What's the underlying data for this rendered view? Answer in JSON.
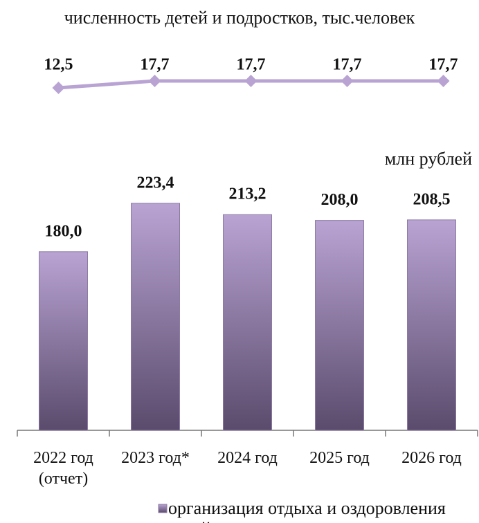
{
  "chart_data": [
    {
      "type": "line",
      "title": "численность детей и подростков, тыс.человек",
      "categories": [
        null,
        null,
        null,
        null,
        null
      ],
      "values": [
        12.5,
        17.7,
        17.7,
        17.7,
        17.7
      ],
      "value_labels": [
        "12,5",
        "17,7",
        "17,7",
        "17,7",
        "17,7"
      ],
      "color": "#b9a3d3",
      "ylim": [
        0,
        20
      ]
    },
    {
      "type": "bar",
      "y_label": "млн рублей",
      "categories": [
        "2022 год\n(отчет)",
        "2023 год*",
        "2024 год",
        "2025 год",
        "2026 год"
      ],
      "series": [
        {
          "name": "организация отдыха и оздоровления детей",
          "color": "#b9a3d3",
          "values": [
            180,
            223.4,
            213.2,
            208,
            208.5
          ],
          "value_labels": [
            "180,0",
            "223,4",
            "213,2",
            "208,0",
            "208,5"
          ]
        }
      ],
      "ylim": [
        20,
        240
      ]
    }
  ]
}
